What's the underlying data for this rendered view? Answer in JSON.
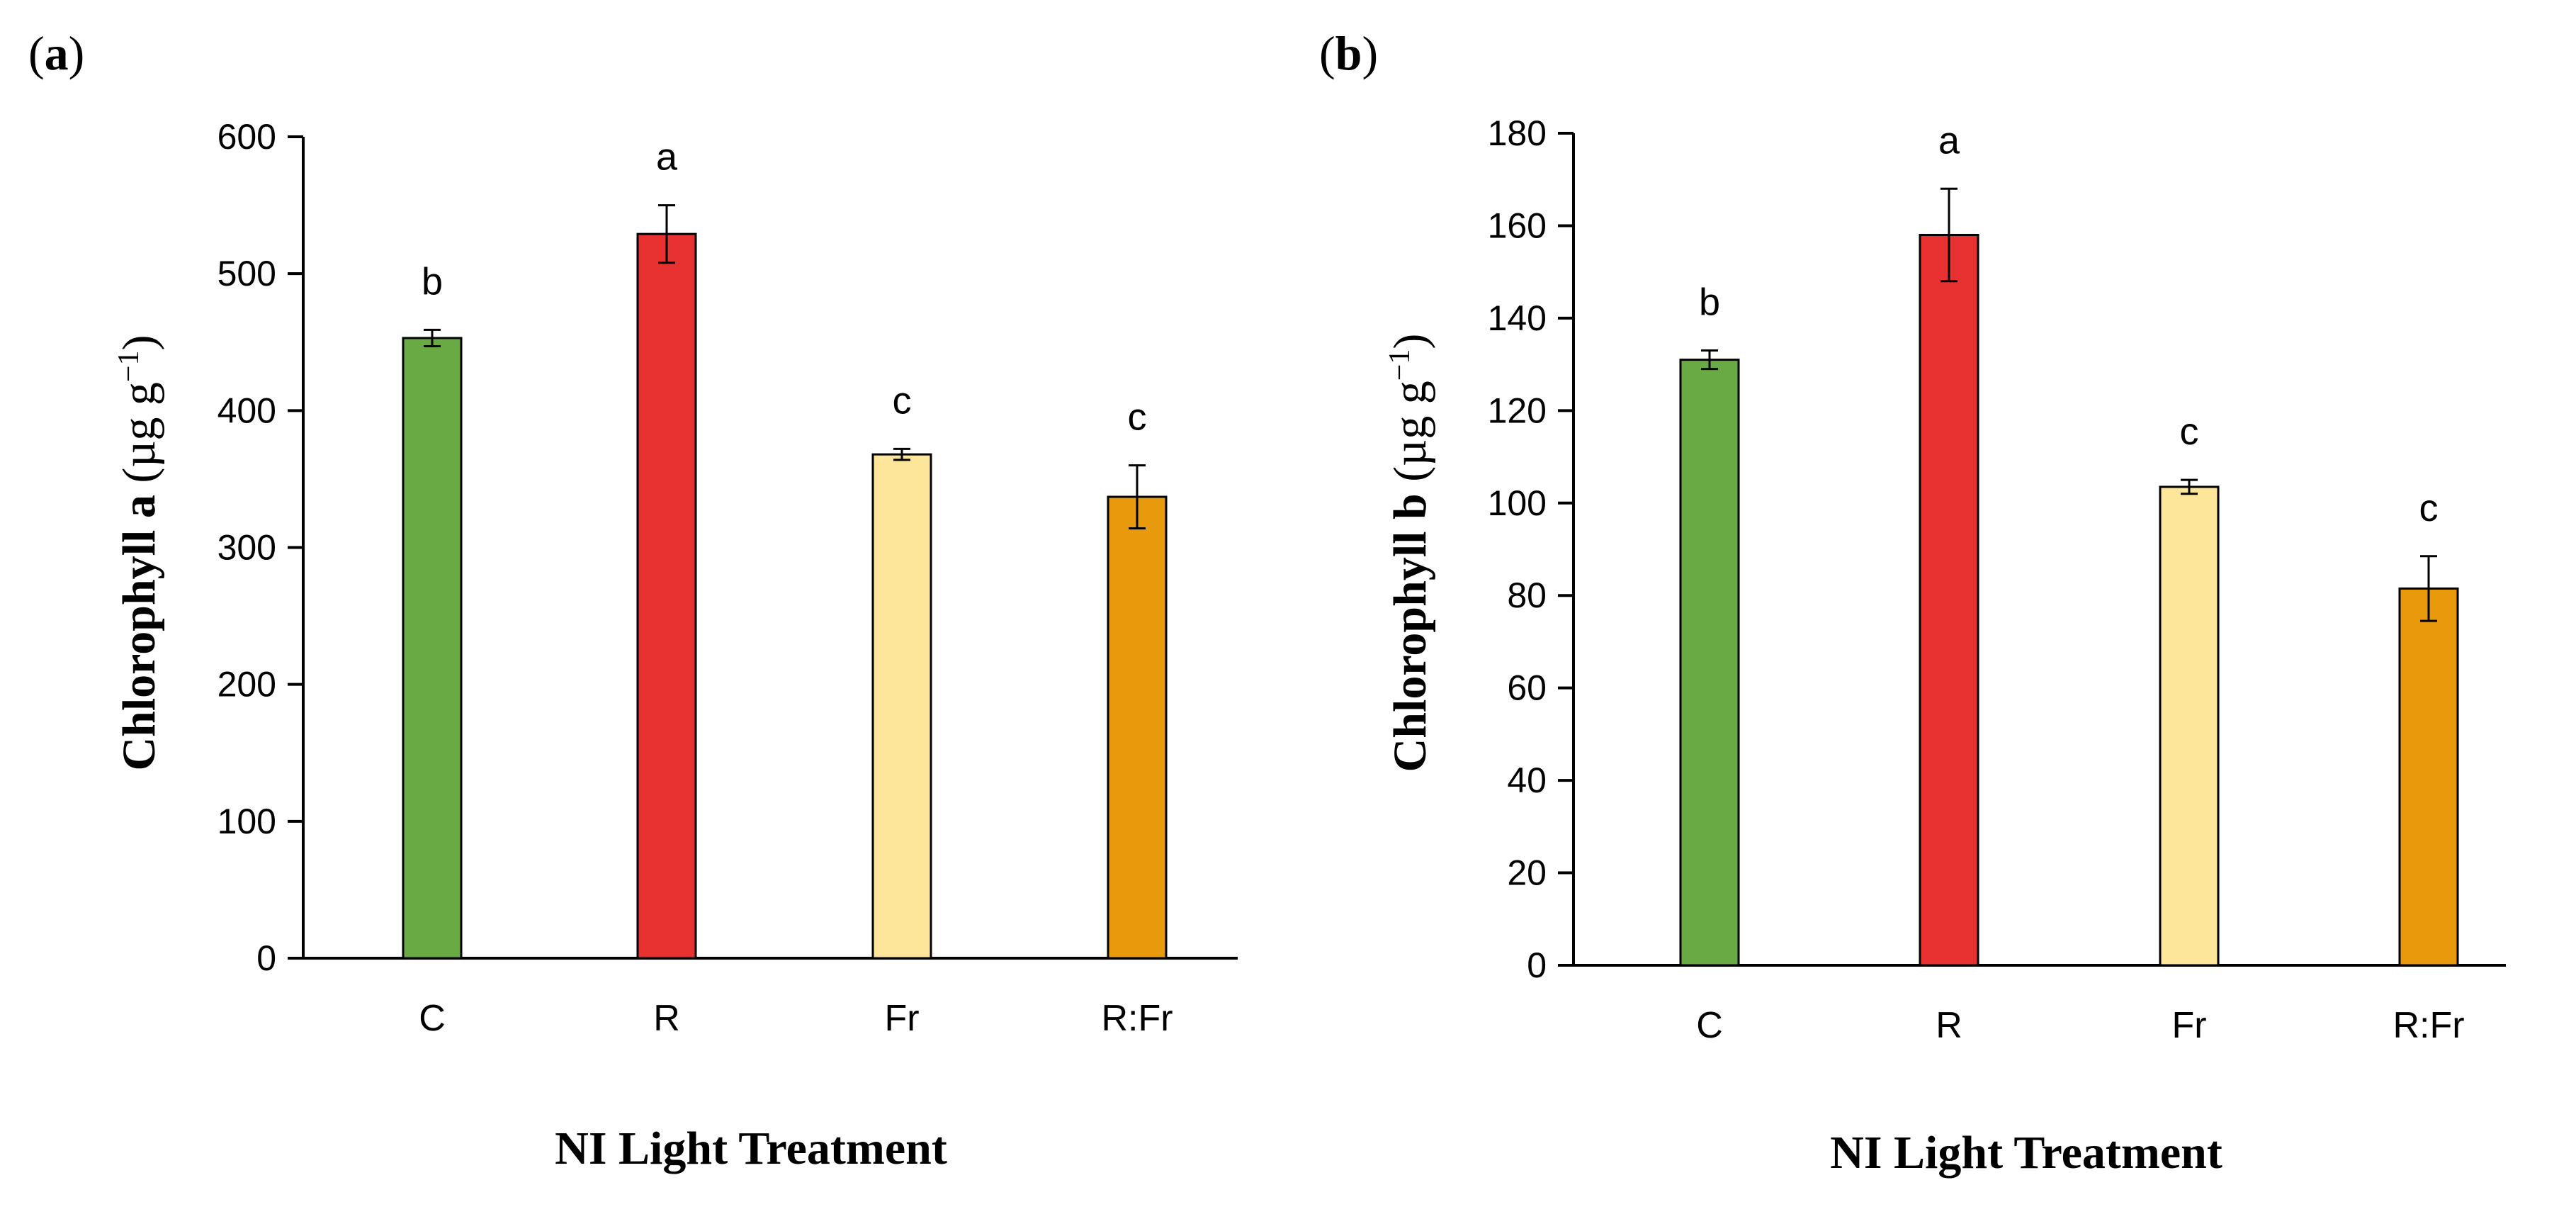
{
  "chart_data": [
    {
      "type": "bar",
      "panel": "a",
      "panel_label": "a",
      "categories": [
        "C",
        "R",
        "Fr",
        "R:Fr"
      ],
      "values": [
        453,
        529,
        368,
        337
      ],
      "errors": [
        6,
        21,
        4,
        23
      ],
      "significance": [
        "b",
        "a",
        "c",
        "c"
      ],
      "colors": [
        "#6aaa45",
        "#e83232",
        "#fde59a",
        "#e99a0c"
      ],
      "ylim": [
        0,
        600
      ],
      "yticks": [
        0,
        100,
        200,
        300,
        400,
        500,
        600
      ],
      "ylabel_main": "Chlorophyll a",
      "ylabel_unit": "(µg g",
      "ylabel_sup": "−1",
      "ylabel_close": ")",
      "xlabel": "NI Light Treatment",
      "grid": false
    },
    {
      "type": "bar",
      "panel": "b",
      "panel_label": "b",
      "categories": [
        "C",
        "R",
        "Fr",
        "R:Fr"
      ],
      "values": [
        131,
        158,
        103.5,
        81.5
      ],
      "errors": [
        2,
        10,
        1.5,
        7
      ],
      "significance": [
        "b",
        "a",
        "c",
        "c"
      ],
      "colors": [
        "#6aaa45",
        "#e83232",
        "#fde59a",
        "#e99a0c"
      ],
      "ylim": [
        0,
        180
      ],
      "yticks": [
        0,
        20,
        40,
        60,
        80,
        100,
        120,
        140,
        160,
        180
      ],
      "ylabel_main": "Chlorophyll b",
      "ylabel_unit": "(µg g",
      "ylabel_sup": "−1",
      "ylabel_close": ")",
      "xlabel": "NI Light Treatment",
      "grid": false
    }
  ]
}
